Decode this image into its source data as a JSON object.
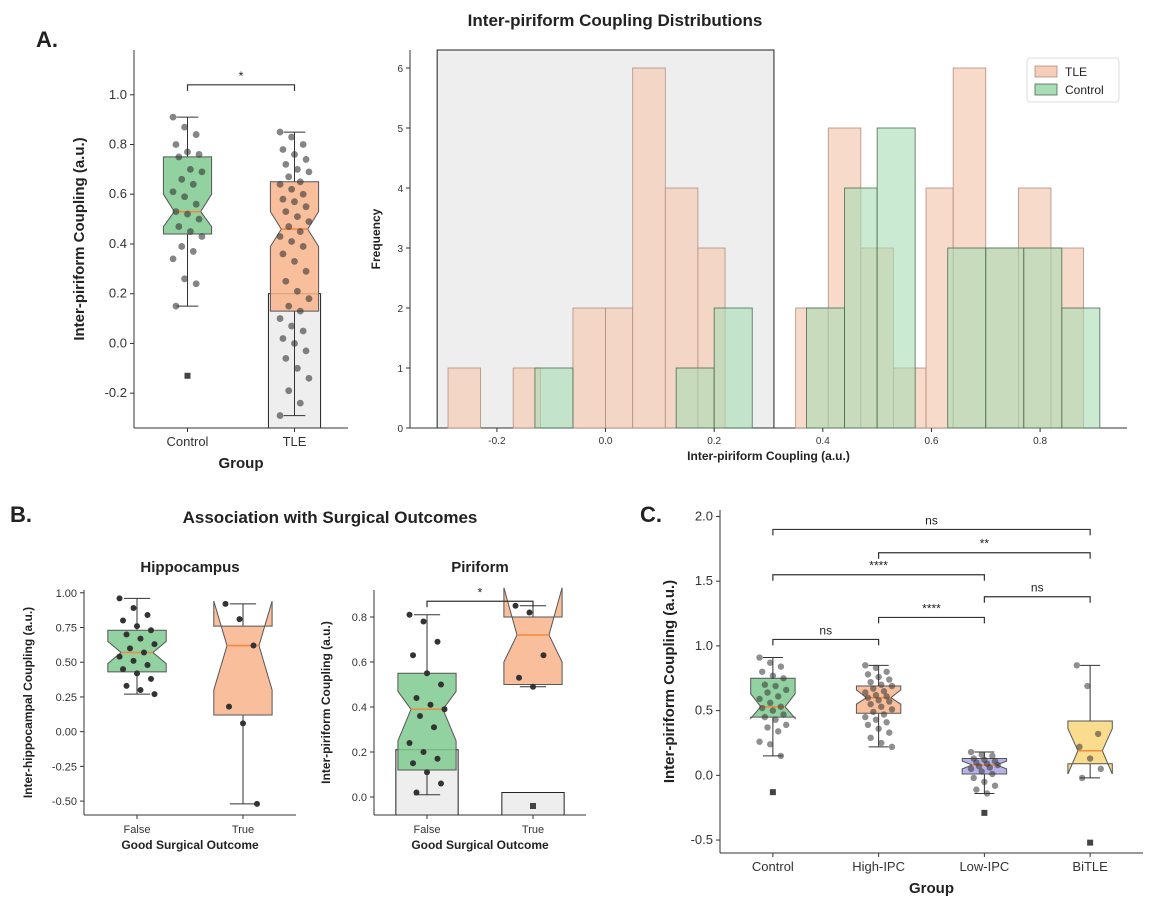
{
  "page": {
    "main_title": "Inter-piriform Coupling Distributions",
    "panel_a": "A.",
    "panel_b": "B.",
    "panel_c": "C.",
    "panel_b_title": "Association with Surgical Outcomes"
  },
  "colors": {
    "control": "#7fc98f",
    "tle": "#f8b48c",
    "low_ipc": "#a9a6e6",
    "bitle": "#f9d67a",
    "median": "#f08a3c",
    "hist_tle": "#f5cdb8",
    "hist_control": "#a8dcb4",
    "highlight": "#e8e8e8",
    "point": "#333333"
  },
  "chart_data": [
    {
      "id": "box_a",
      "type": "box",
      "title": "",
      "xlabel": "Group",
      "ylabel": "Inter-piriform Coupling (a.u.)",
      "categories": [
        "Control",
        "TLE"
      ],
      "ylim": [
        -0.34,
        1.18
      ],
      "yticks": [
        "-0.2",
        "0.0",
        "0.2",
        "0.4",
        "0.6",
        "0.8",
        "1.0"
      ],
      "ytick_values": [
        -0.2,
        0.0,
        0.2,
        0.4,
        0.6,
        0.8,
        1.0
      ],
      "boxes": [
        {
          "q1": 0.44,
          "median": 0.53,
          "q3": 0.75,
          "notch_lo": 0.47,
          "notch_hi": 0.6,
          "whisker_lo": 0.15,
          "whisker_hi": 0.91
        },
        {
          "q1": 0.13,
          "median": 0.46,
          "q3": 0.65,
          "notch_lo": 0.39,
          "notch_hi": 0.53,
          "whisker_lo": -0.29,
          "whisker_hi": 0.85
        }
      ],
      "outliers": [
        {
          "group": 0,
          "value": -0.13
        }
      ],
      "points": [
        [
          0.91,
          0.87,
          0.84,
          0.8,
          0.77,
          0.76,
          0.75,
          0.7,
          0.69,
          0.66,
          0.64,
          0.61,
          0.59,
          0.56,
          0.53,
          0.52,
          0.5,
          0.47,
          0.45,
          0.43,
          0.39,
          0.37,
          0.34,
          0.26,
          0.24,
          0.15
        ],
        [
          0.85,
          0.83,
          0.8,
          0.78,
          0.76,
          0.74,
          0.72,
          0.7,
          0.69,
          0.67,
          0.65,
          0.64,
          0.62,
          0.6,
          0.58,
          0.57,
          0.55,
          0.53,
          0.51,
          0.49,
          0.47,
          0.45,
          0.43,
          0.41,
          0.39,
          0.36,
          0.33,
          0.29,
          0.25,
          0.21,
          0.18,
          0.15,
          0.13,
          0.1,
          0.07,
          0.05,
          0.02,
          0.0,
          -0.03,
          -0.06,
          -0.1,
          -0.14,
          -0.19,
          -0.24,
          -0.29
        ]
      ],
      "highlight": {
        "group": 1,
        "from": -0.34,
        "to": 0.2
      },
      "significance": [
        {
          "from": 0,
          "to": 1,
          "y": 1.04,
          "label": "*"
        }
      ]
    },
    {
      "id": "hist_a",
      "type": "histogram",
      "title": "",
      "xlabel": "Inter-piriform Coupling (a.u.)",
      "ylabel": "Frequency",
      "xlim": [
        -0.36,
        0.96
      ],
      "ylim": [
        0,
        6.3
      ],
      "xticks": [
        "-0.2",
        "0.0",
        "0.2",
        "0.4",
        "0.6",
        "0.8"
      ],
      "xtick_values": [
        -0.2,
        0.0,
        0.2,
        0.4,
        0.6,
        0.8
      ],
      "yticks": [
        "0",
        "1",
        "2",
        "3",
        "4",
        "5",
        "6"
      ],
      "ytick_values": [
        0,
        1,
        2,
        3,
        4,
        5,
        6
      ],
      "highlight": [
        -0.31,
        0.31
      ],
      "legend": [
        "TLE",
        "Control"
      ],
      "series": [
        {
          "name": "TLE",
          "bins": [
            [
              -0.29,
              -0.23,
              1
            ],
            [
              -0.17,
              -0.12,
              1
            ],
            [
              -0.06,
              0.0,
              2
            ],
            [
              0.0,
              0.05,
              2
            ],
            [
              0.05,
              0.11,
              6
            ],
            [
              0.11,
              0.17,
              4
            ],
            [
              0.17,
              0.22,
              3
            ],
            [
              0.35,
              0.41,
              2
            ],
            [
              0.41,
              0.47,
              5
            ],
            [
              0.47,
              0.53,
              3
            ],
            [
              0.53,
              0.59,
              1
            ],
            [
              0.59,
              0.64,
              4
            ],
            [
              0.64,
              0.7,
              6
            ],
            [
              0.7,
              0.76,
              3
            ],
            [
              0.76,
              0.82,
              4
            ],
            [
              0.82,
              0.88,
              3
            ]
          ]
        },
        {
          "name": "Control",
          "bins": [
            [
              -0.13,
              -0.06,
              1
            ],
            [
              0.13,
              0.2,
              1
            ],
            [
              0.2,
              0.27,
              2
            ],
            [
              0.37,
              0.44,
              2
            ],
            [
              0.44,
              0.5,
              4
            ],
            [
              0.5,
              0.57,
              5
            ],
            [
              0.63,
              0.7,
              3
            ],
            [
              0.7,
              0.77,
              3
            ],
            [
              0.77,
              0.84,
              3
            ],
            [
              0.84,
              0.91,
              2
            ]
          ]
        }
      ]
    },
    {
      "id": "box_b1",
      "type": "box",
      "title": "Hippocampus",
      "xlabel": "Good Surgical Outcome",
      "ylabel": "Inter-hippocampal Coupling (a.u.)",
      "categories": [
        "False",
        "True"
      ],
      "ylim": [
        -0.6,
        1.02
      ],
      "yticks": [
        "-0.50",
        "-0.25",
        "0.00",
        "0.25",
        "0.50",
        "0.75",
        "1.00"
      ],
      "ytick_values": [
        -0.5,
        -0.25,
        0.0,
        0.25,
        0.5,
        0.75,
        1.0
      ],
      "boxes": [
        {
          "q1": 0.43,
          "median": 0.57,
          "q3": 0.73,
          "notch_lo": 0.49,
          "notch_hi": 0.65,
          "whisker_lo": 0.27,
          "whisker_hi": 0.96
        },
        {
          "q1": 0.12,
          "median": 0.62,
          "q3": 0.76,
          "notch_lo": 0.3,
          "notch_hi": 0.94,
          "whisker_lo": -0.52,
          "whisker_hi": 0.92
        }
      ],
      "outliers": [],
      "points": [
        [
          0.96,
          0.89,
          0.84,
          0.8,
          0.76,
          0.73,
          0.7,
          0.67,
          0.63,
          0.6,
          0.57,
          0.54,
          0.51,
          0.48,
          0.45,
          0.42,
          0.38,
          0.33,
          0.3,
          0.27
        ],
        [
          0.92,
          0.81,
          0.62,
          0.18,
          0.06,
          -0.52
        ]
      ],
      "significance": []
    },
    {
      "id": "box_b2",
      "type": "box",
      "title": "Piriform",
      "xlabel": "Good Surgical Outcome",
      "ylabel": "Inter-piriform Coupling (a.u.)",
      "categories": [
        "False",
        "True"
      ],
      "ylim": [
        -0.08,
        0.92
      ],
      "yticks": [
        "0.0",
        "0.2",
        "0.4",
        "0.6",
        "0.8"
      ],
      "ytick_values": [
        0.0,
        0.2,
        0.4,
        0.6,
        0.8
      ],
      "boxes": [
        {
          "q1": 0.12,
          "median": 0.39,
          "q3": 0.55,
          "notch_lo": 0.25,
          "notch_hi": 0.47,
          "whisker_lo": 0.01,
          "whisker_hi": 0.81
        },
        {
          "q1": 0.5,
          "median": 0.72,
          "q3": 0.8,
          "notch_lo": 0.6,
          "notch_hi": 0.93,
          "whisker_lo": 0.49,
          "whisker_hi": 0.85
        }
      ],
      "outliers": [
        {
          "group": 1,
          "value": -0.04
        }
      ],
      "points": [
        [
          0.81,
          0.78,
          0.69,
          0.63,
          0.55,
          0.5,
          0.44,
          0.41,
          0.39,
          0.36,
          0.31,
          0.24,
          0.2,
          0.17,
          0.15,
          0.11,
          0.06,
          0.02
        ],
        [
          0.85,
          0.82,
          0.63,
          0.53,
          0.49
        ]
      ],
      "highlight": [
        {
          "group": 0,
          "from": -0.08,
          "to": 0.21
        },
        {
          "group": 1,
          "from": -0.08,
          "to": 0.02
        }
      ],
      "significance": [
        {
          "from": 0,
          "to": 1,
          "y": 0.87,
          "label": "*"
        }
      ]
    },
    {
      "id": "box_c",
      "type": "box",
      "title": "",
      "xlabel": "Group",
      "ylabel": "Inter-piriform Coupling (a.u.)",
      "categories": [
        "Control",
        "High-IPC",
        "Low-IPC",
        "BiTLE"
      ],
      "ylim": [
        -0.6,
        2.05
      ],
      "yticks": [
        "-0.5",
        "0.0",
        "0.5",
        "1.0",
        "1.5",
        "2.0"
      ],
      "ytick_values": [
        -0.5,
        0.0,
        0.5,
        1.0,
        1.5,
        2.0
      ],
      "boxes": [
        {
          "q1": 0.45,
          "median": 0.53,
          "q3": 0.75,
          "notch_lo": 0.44,
          "notch_hi": 0.63,
          "whisker_lo": 0.15,
          "whisker_hi": 0.91
        },
        {
          "q1": 0.48,
          "median": 0.6,
          "q3": 0.69,
          "notch_lo": 0.55,
          "notch_hi": 0.66,
          "whisker_lo": 0.22,
          "whisker_hi": 0.85
        },
        {
          "q1": 0.01,
          "median": 0.08,
          "q3": 0.13,
          "notch_lo": 0.05,
          "notch_hi": 0.11,
          "whisker_lo": -0.14,
          "whisker_hi": 0.18
        },
        {
          "q1": 0.09,
          "median": 0.19,
          "q3": 0.42,
          "notch_lo": 0.01,
          "notch_hi": 0.36,
          "whisker_lo": -0.02,
          "whisker_hi": 0.85
        }
      ],
      "outliers": [
        {
          "group": 0,
          "value": -0.13
        },
        {
          "group": 2,
          "value": -0.29
        },
        {
          "group": 3,
          "value": -0.52
        }
      ],
      "points": [
        [
          0.91,
          0.87,
          0.84,
          0.8,
          0.77,
          0.75,
          0.7,
          0.69,
          0.66,
          0.64,
          0.61,
          0.59,
          0.56,
          0.53,
          0.52,
          0.5,
          0.47,
          0.45,
          0.43,
          0.39,
          0.37,
          0.34,
          0.26,
          0.24,
          0.15
        ],
        [
          0.85,
          0.83,
          0.8,
          0.78,
          0.76,
          0.74,
          0.72,
          0.7,
          0.69,
          0.67,
          0.65,
          0.64,
          0.62,
          0.61,
          0.6,
          0.58,
          0.57,
          0.55,
          0.53,
          0.51,
          0.49,
          0.47,
          0.45,
          0.43,
          0.41,
          0.39,
          0.36,
          0.33,
          0.29,
          0.25,
          0.22
        ],
        [
          0.18,
          0.16,
          0.15,
          0.13,
          0.12,
          0.11,
          0.1,
          0.09,
          0.08,
          0.07,
          0.06,
          0.05,
          0.03,
          0.01,
          -0.02,
          -0.05,
          -0.08,
          -0.11,
          -0.14
        ],
        [
          0.85,
          0.69,
          0.32,
          0.22,
          0.13,
          0.05,
          -0.02
        ]
      ],
      "significance": [
        {
          "from": 0,
          "to": 3,
          "y": 1.9,
          "label": "ns"
        },
        {
          "from": 1,
          "to": 3,
          "y": 1.72,
          "label": "**"
        },
        {
          "from": 0,
          "to": 2,
          "y": 1.55,
          "label": "****"
        },
        {
          "from": 2,
          "to": 3,
          "y": 1.38,
          "label": "ns"
        },
        {
          "from": 1,
          "to": 2,
          "y": 1.22,
          "label": "****"
        },
        {
          "from": 0,
          "to": 1,
          "y": 1.05,
          "label": "ns"
        }
      ]
    }
  ]
}
